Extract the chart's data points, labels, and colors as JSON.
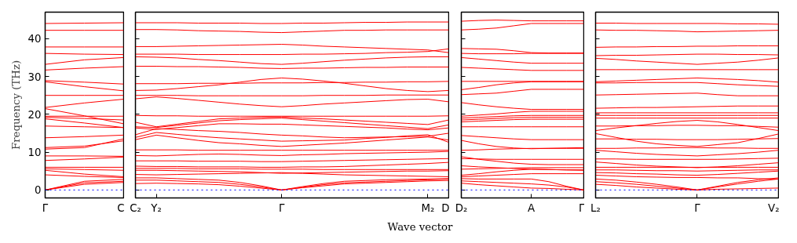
{
  "chart_data": [
    {
      "type": "line",
      "ylabel": "Frequency (THz)",
      "ylim": [
        -2.1,
        47
      ],
      "yticks": [
        0,
        10,
        20,
        30,
        40
      ],
      "categories": [
        "Γ",
        null,
        "C"
      ],
      "ref_lines": [
        {
          "axis": "y",
          "value": 0,
          "color": "#0000ff",
          "line_style": "dotted"
        }
      ],
      "series": [
        {
          "color": "#ff0000",
          "values": [
            44.0,
            44.1,
            44.2
          ]
        },
        {
          "color": "#ff0000",
          "values": [
            42.2,
            42.2,
            42.2
          ]
        },
        {
          "color": "#ff0000",
          "values": [
            37.8,
            37.8,
            37.8
          ]
        },
        {
          "color": "#ff0000",
          "values": [
            36.1,
            35.9,
            35.8
          ]
        },
        {
          "color": "#ff0000",
          "values": [
            33.2,
            34.4,
            35.0
          ]
        },
        {
          "color": "#ff0000",
          "values": [
            31.7,
            32.2,
            32.6
          ]
        },
        {
          "color": "#ff0000",
          "values": [
            28.9,
            28.5,
            28.0
          ]
        },
        {
          "color": "#ff0000",
          "values": [
            28.6,
            27.3,
            26.2
          ]
        },
        {
          "color": "#ff0000",
          "values": [
            25.0,
            25.0,
            25.0
          ]
        },
        {
          "color": "#ff0000",
          "values": [
            21.8,
            23.0,
            24.0
          ]
        },
        {
          "color": "#ff0000",
          "values": [
            21.5,
            19.6,
            17.5
          ]
        },
        {
          "color": "#ff0000",
          "values": [
            19.5,
            19.5,
            19.5
          ]
        },
        {
          "color": "#ff0000",
          "values": [
            19.2,
            18.9,
            18.5
          ]
        },
        {
          "color": "#ff0000",
          "values": [
            18.8,
            17.7,
            16.5
          ]
        },
        {
          "color": "#ff0000",
          "values": [
            16.9,
            16.7,
            16.5
          ]
        },
        {
          "color": "#ff0000",
          "values": [
            13.8,
            14.1,
            14.5
          ]
        },
        {
          "color": "#ff0000",
          "values": [
            11.2,
            11.6,
            13.0
          ]
        },
        {
          "color": "#ff0000",
          "values": [
            10.8,
            11.2,
            13.5
          ]
        },
        {
          "color": "#ff0000",
          "values": [
            9.0,
            9.0,
            8.9
          ]
        },
        {
          "color": "#ff0000",
          "values": [
            7.8,
            8.2,
            8.7
          ]
        },
        {
          "color": "#ff0000",
          "values": [
            6.0,
            6.0,
            6.0
          ]
        },
        {
          "color": "#ff0000",
          "values": [
            5.6,
            5.4,
            5.2
          ]
        },
        {
          "color": "#ff0000",
          "values": [
            5.2,
            4.2,
            3.5
          ]
        },
        {
          "color": "#ff0000",
          "values": [
            4.0,
            3.6,
            3.3
          ]
        },
        {
          "color": "#ff0000",
          "values": [
            0,
            2.3,
            2.8
          ]
        },
        {
          "color": "#ff0000",
          "values": [
            0,
            1.9,
            2.3
          ]
        },
        {
          "color": "#ff0000",
          "values": [
            0,
            1.5,
            2.0
          ]
        }
      ]
    },
    {
      "type": "line",
      "xlabel": "Wave vector",
      "tick_labels": "x",
      "ylim": [
        -2.1,
        47
      ],
      "yticks": [
        0,
        10,
        20,
        30,
        40
      ],
      "categories": [
        "C₂",
        "Y₂",
        null,
        null,
        null,
        null,
        null,
        "Γ",
        null,
        null,
        null,
        null,
        null,
        null,
        "M₂",
        "D"
      ],
      "ref_lines": [
        {
          "axis": "y",
          "value": 0,
          "color": "#0000ff",
          "line_style": "dotted"
        }
      ],
      "series": [
        {
          "color": "#ff0000",
          "values": [
            44.2,
            44.2,
            44.2,
            44.1,
            44.1,
            44.1,
            44.0,
            44.0,
            44.1,
            44.1,
            44.2,
            44.3,
            44.3,
            44.4,
            44.4,
            44.4
          ]
        },
        {
          "color": "#ff0000",
          "values": [
            42.4,
            42.4,
            42.3,
            42.1,
            42.0,
            41.9,
            41.7,
            41.6,
            41.8,
            42.0,
            42.2,
            42.2,
            42.3,
            42.3,
            42.3,
            42.3
          ]
        },
        {
          "color": "#ff0000",
          "values": [
            37.9,
            37.9,
            38.0,
            38.1,
            38.2,
            38.3,
            38.4,
            38.5,
            38.3,
            38.0,
            37.8,
            37.6,
            37.4,
            37.2,
            37.0,
            36.3
          ]
        },
        {
          "color": "#ff0000",
          "values": [
            35.9,
            35.9,
            35.9,
            35.8,
            35.8,
            35.8,
            35.8,
            35.8,
            35.9,
            35.9,
            36.0,
            36.1,
            36.3,
            36.4,
            36.6,
            37.3
          ]
        },
        {
          "color": "#ff0000",
          "values": [
            35.2,
            35.1,
            34.9,
            34.5,
            34.2,
            33.8,
            33.4,
            33.2,
            33.5,
            33.9,
            34.3,
            34.6,
            34.9,
            35.1,
            35.2,
            35.2
          ]
        },
        {
          "color": "#ff0000",
          "values": [
            32.7,
            32.7,
            32.6,
            32.6,
            32.5,
            32.4,
            32.2,
            32.1,
            32.2,
            32.2,
            32.3,
            32.4,
            32.4,
            32.5,
            32.5,
            32.5
          ]
        },
        {
          "color": "#ff0000",
          "values": [
            28.1,
            28.1,
            28.1,
            28.2,
            28.2,
            28.2,
            28.3,
            28.3,
            28.3,
            28.4,
            28.4,
            28.5,
            28.5,
            28.6,
            28.6,
            28.7
          ]
        },
        {
          "color": "#ff0000",
          "values": [
            26.3,
            26.4,
            26.8,
            27.3,
            27.8,
            28.5,
            29.2,
            29.6,
            29.3,
            28.8,
            28.2,
            27.5,
            26.8,
            26.3,
            26.0,
            26.3
          ]
        },
        {
          "color": "#ff0000",
          "values": [
            25.0,
            25.0,
            25.0,
            24.9,
            24.9,
            24.9,
            24.9,
            24.9,
            24.9,
            25.0,
            25.0,
            25.0,
            25.1,
            25.1,
            25.1,
            25.1
          ]
        },
        {
          "color": "#ff0000",
          "values": [
            24.1,
            24.6,
            24.2,
            23.7,
            23.2,
            22.7,
            22.3,
            22.0,
            22.3,
            22.7,
            23.0,
            23.3,
            23.6,
            23.9,
            24.0,
            23.3
          ]
        },
        {
          "color": "#ff0000",
          "values": [
            19.7,
            19.6,
            19.6,
            19.5,
            19.5,
            19.5,
            19.5,
            19.5,
            19.5,
            19.5,
            19.5,
            19.5,
            19.5,
            19.5,
            19.5,
            19.6
          ]
        },
        {
          "color": "#ff0000",
          "values": [
            17.9,
            16.7,
            17.4,
            18.1,
            18.8,
            19.0,
            19.2,
            19.3,
            19.0,
            18.8,
            18.5,
            18.2,
            17.9,
            17.6,
            17.3,
            18.5
          ]
        },
        {
          "color": "#ff0000",
          "values": [
            16.7,
            16.5,
            17.1,
            17.7,
            18.3,
            18.6,
            18.8,
            19.0,
            18.6,
            18.2,
            17.8,
            17.4,
            17.0,
            16.6,
            16.2,
            17.2
          ]
        },
        {
          "color": "#ff0000",
          "values": [
            16.4,
            16.0,
            16.5,
            17.0,
            17.5,
            17.5,
            17.4,
            17.4,
            17.2,
            17.0,
            16.8,
            16.6,
            16.4,
            16.1,
            15.9,
            16.4
          ]
        },
        {
          "color": "#ff0000",
          "values": [
            14.6,
            16.2,
            16.0,
            15.7,
            15.5,
            15.2,
            14.8,
            14.5,
            14.3,
            14.0,
            13.8,
            13.9,
            14.0,
            14.1,
            14.2,
            15.0
          ]
        },
        {
          "color": "#ff0000",
          "values": [
            13.9,
            15.2,
            14.7,
            14.2,
            13.8,
            13.5,
            13.2,
            12.9,
            13.0,
            13.1,
            13.2,
            13.6,
            13.9,
            14.3,
            14.6,
            12.6
          ]
        },
        {
          "color": "#ff0000",
          "values": [
            13.3,
            14.5,
            13.8,
            13.1,
            12.5,
            12.2,
            11.8,
            11.5,
            11.8,
            12.1,
            12.4,
            12.8,
            13.2,
            13.6,
            14.0,
            13.2
          ]
        },
        {
          "color": "#ff0000",
          "values": [
            10.6,
            10.6,
            10.6,
            10.5,
            10.5,
            10.5,
            10.5,
            10.5,
            10.5,
            10.5,
            10.5,
            10.5,
            10.5,
            10.5,
            10.5,
            10.5
          ]
        },
        {
          "color": "#ff0000",
          "values": [
            9.1,
            9.0,
            9.2,
            9.4,
            9.5,
            9.4,
            9.2,
            9.1,
            9.3,
            9.4,
            9.6,
            9.7,
            9.8,
            9.9,
            10.0,
            10.2
          ]
        },
        {
          "color": "#ff0000",
          "values": [
            7.7,
            7.7,
            7.7,
            7.6,
            7.6,
            7.6,
            7.5,
            7.5,
            7.6,
            7.7,
            7.8,
            7.9,
            8.0,
            8.1,
            8.2,
            8.3
          ]
        },
        {
          "color": "#ff0000",
          "values": [
            6.3,
            6.2,
            6.2,
            6.1,
            6.1,
            6.1,
            6.0,
            6.0,
            6.1,
            6.1,
            6.2,
            6.4,
            6.6,
            6.8,
            7.0,
            7.3
          ]
        },
        {
          "color": "#ff0000",
          "values": [
            5.7,
            5.7,
            5.7,
            5.6,
            5.6,
            5.6,
            5.5,
            5.5,
            5.5,
            5.4,
            5.4,
            5.4,
            5.4,
            5.4,
            5.4,
            5.4
          ]
        },
        {
          "color": "#ff0000",
          "values": [
            5.2,
            5.2,
            5.1,
            5.0,
            4.9,
            4.8,
            4.6,
            4.4,
            4.5,
            4.6,
            4.7,
            4.8,
            4.9,
            5.0,
            5.0,
            5.1
          ]
        },
        {
          "color": "#ff0000",
          "values": [
            4.1,
            4.0,
            4.1,
            4.2,
            4.3,
            4.4,
            4.5,
            4.6,
            4.4,
            4.2,
            4.0,
            3.9,
            3.8,
            3.7,
            3.6,
            3.5
          ]
        },
        {
          "color": "#ff0000",
          "values": [
            3.2,
            3.2,
            3.0,
            2.8,
            2.6,
            2.0,
            1.1,
            0,
            0.9,
            1.7,
            2.3,
            2.5,
            2.7,
            2.8,
            2.9,
            3.0
          ]
        },
        {
          "color": "#ff0000",
          "values": [
            2.6,
            2.6,
            2.4,
            2.2,
            2.0,
            1.5,
            0.8,
            0,
            0.7,
            1.4,
            1.9,
            2.1,
            2.3,
            2.5,
            2.7,
            2.9
          ]
        },
        {
          "color": "#ff0000",
          "values": [
            1.7,
            1.8,
            1.7,
            1.6,
            1.4,
            1.0,
            0.5,
            0,
            0.6,
            1.1,
            1.6,
            1.8,
            2.0,
            2.2,
            2.4,
            2.5
          ]
        }
      ]
    },
    {
      "type": "line",
      "tick_labels": "x",
      "ylim": [
        -2.1,
        47
      ],
      "yticks": [
        0,
        10,
        20,
        30,
        40
      ],
      "categories": [
        "D₂",
        null,
        null,
        null,
        "A",
        null,
        null,
        "Γ"
      ],
      "ref_lines": [
        {
          "axis": "y",
          "value": 0,
          "color": "#0000ff",
          "line_style": "dotted"
        }
      ],
      "series": [
        {
          "color": "#ff0000",
          "values": [
            44.6,
            44.8,
            44.9,
            44.8,
            44.7,
            44.7,
            44.7,
            44.7
          ]
        },
        {
          "color": "#ff0000",
          "values": [
            42.3,
            42.5,
            42.8,
            43.4,
            44.0,
            44.0,
            44.0,
            44.0
          ]
        },
        {
          "color": "#ff0000",
          "values": [
            37.4,
            37.3,
            37.2,
            36.8,
            36.3,
            36.2,
            36.2,
            36.2
          ]
        },
        {
          "color": "#ff0000",
          "values": [
            36.1,
            36.0,
            36.0,
            36.0,
            36.1,
            36.1,
            36.1,
            36.1
          ]
        },
        {
          "color": "#ff0000",
          "values": [
            35.0,
            34.6,
            34.2,
            33.8,
            33.5,
            33.5,
            33.5,
            33.5
          ]
        },
        {
          "color": "#ff0000",
          "values": [
            32.4,
            32.2,
            32.0,
            31.8,
            31.6,
            31.6,
            31.6,
            31.6
          ]
        },
        {
          "color": "#ff0000",
          "values": [
            28.7,
            28.7,
            28.7,
            28.7,
            28.7,
            28.7,
            28.7,
            28.7
          ]
        },
        {
          "color": "#ff0000",
          "values": [
            26.5,
            27.1,
            27.8,
            28.3,
            28.6,
            28.6,
            28.6,
            28.6
          ]
        },
        {
          "color": "#ff0000",
          "values": [
            25.2,
            25.4,
            25.6,
            26.1,
            26.6,
            26.6,
            26.6,
            26.6
          ]
        },
        {
          "color": "#ff0000",
          "values": [
            23.1,
            22.5,
            22.0,
            21.6,
            21.3,
            21.3,
            21.3,
            21.3
          ]
        },
        {
          "color": "#ff0000",
          "values": [
            19.5,
            19.8,
            20.1,
            20.5,
            20.8,
            20.8,
            20.8,
            20.8
          ]
        },
        {
          "color": "#ff0000",
          "values": [
            19.0,
            19.2,
            19.4,
            19.6,
            19.7,
            19.7,
            19.7,
            19.7
          ]
        },
        {
          "color": "#ff0000",
          "values": [
            18.5,
            18.7,
            18.9,
            19.1,
            19.2,
            19.2,
            19.2,
            19.2
          ]
        },
        {
          "color": "#ff0000",
          "values": [
            18.0,
            18.2,
            18.4,
            18.6,
            18.7,
            18.7,
            18.7,
            18.7
          ]
        },
        {
          "color": "#ff0000",
          "values": [
            16.7,
            16.7,
            16.7,
            16.7,
            16.7,
            16.7,
            16.7,
            16.7
          ]
        },
        {
          "color": "#ff0000",
          "values": [
            14.4,
            14.1,
            13.8,
            13.5,
            13.3,
            13.3,
            13.3,
            13.3
          ]
        },
        {
          "color": "#ff0000",
          "values": [
            13.1,
            12.2,
            11.5,
            11.1,
            10.9,
            11.0,
            11.1,
            11.2
          ]
        },
        {
          "color": "#ff0000",
          "values": [
            10.5,
            10.6,
            10.8,
            10.9,
            11.0,
            11.0,
            11.0,
            11.0
          ]
        },
        {
          "color": "#ff0000",
          "values": [
            8.8,
            8.1,
            7.6,
            7.1,
            6.8,
            6.7,
            6.7,
            6.7
          ]
        },
        {
          "color": "#ff0000",
          "values": [
            8.3,
            8.2,
            8.1,
            8.1,
            8.1,
            8.1,
            8.1,
            8.1
          ]
        },
        {
          "color": "#ff0000",
          "values": [
            6.4,
            6.1,
            5.9,
            5.7,
            5.5,
            5.4,
            5.3,
            5.3
          ]
        },
        {
          "color": "#ff0000",
          "values": [
            5.5,
            5.6,
            5.7,
            5.8,
            5.9,
            5.9,
            5.9,
            5.9
          ]
        },
        {
          "color": "#ff0000",
          "values": [
            3.9,
            4.3,
            4.8,
            5.2,
            5.5,
            5.4,
            5.3,
            5.2
          ]
        },
        {
          "color": "#ff0000",
          "values": [
            3.5,
            3.7,
            3.9,
            4.1,
            4.3,
            4.3,
            4.3,
            4.3
          ]
        },
        {
          "color": "#ff0000",
          "values": [
            3.0,
            2.9,
            2.9,
            2.9,
            2.9,
            2.2,
            1.0,
            0
          ]
        },
        {
          "color": "#ff0000",
          "values": [
            2.4,
            2.2,
            2.0,
            1.8,
            1.6,
            1.3,
            0.8,
            0
          ]
        },
        {
          "color": "#ff0000",
          "values": [
            1.8,
            1.4,
            1.1,
            0.8,
            0.5,
            0.4,
            0.2,
            0
          ]
        }
      ]
    },
    {
      "type": "line",
      "tick_labels": "x",
      "ylim": [
        -2.1,
        47
      ],
      "yticks": [
        0,
        10,
        20,
        30,
        40
      ],
      "categories": [
        "L₂",
        null,
        null,
        null,
        null,
        "Γ",
        null,
        null,
        null,
        "V₂"
      ],
      "ref_lines": [
        {
          "axis": "y",
          "value": 0,
          "color": "#0000ff",
          "line_style": "dotted"
        }
      ],
      "series": [
        {
          "color": "#ff0000",
          "values": [
            44.1,
            44.1,
            44.0,
            44.0,
            44.0,
            44.0,
            44.0,
            43.9,
            43.9,
            43.8
          ]
        },
        {
          "color": "#ff0000",
          "values": [
            42.3,
            42.2,
            42.2,
            42.1,
            42.0,
            41.8,
            41.9,
            42.0,
            42.1,
            42.2
          ]
        },
        {
          "color": "#ff0000",
          "values": [
            37.7,
            37.8,
            37.8,
            37.9,
            37.9,
            38.0,
            38.0,
            38.1,
            38.1,
            38.1
          ]
        },
        {
          "color": "#ff0000",
          "values": [
            35.5,
            35.6,
            35.6,
            35.7,
            35.8,
            35.9,
            35.9,
            35.8,
            35.8,
            35.7
          ]
        },
        {
          "color": "#ff0000",
          "values": [
            34.8,
            34.5,
            34.1,
            33.8,
            33.5,
            33.2,
            33.5,
            33.8,
            34.3,
            34.9
          ]
        },
        {
          "color": "#ff0000",
          "values": [
            31.8,
            31.8,
            31.8,
            31.8,
            31.8,
            31.8,
            31.8,
            31.8,
            31.8,
            31.8
          ]
        },
        {
          "color": "#ff0000",
          "values": [
            28.6,
            28.8,
            29.0,
            29.2,
            29.4,
            29.6,
            29.4,
            29.2,
            28.9,
            28.5
          ]
        },
        {
          "color": "#ff0000",
          "values": [
            28.3,
            28.3,
            28.4,
            28.4,
            28.4,
            28.4,
            28.1,
            27.8,
            27.6,
            27.4
          ]
        },
        {
          "color": "#ff0000",
          "values": [
            25.1,
            25.2,
            25.3,
            25.4,
            25.5,
            25.6,
            25.2,
            24.9,
            24.9,
            24.9
          ]
        },
        {
          "color": "#ff0000",
          "values": [
            21.6,
            21.7,
            21.8,
            21.8,
            21.9,
            22.0,
            22.1,
            22.2,
            22.2,
            22.2
          ]
        },
        {
          "color": "#ff0000",
          "values": [
            20.4,
            20.4,
            20.4,
            20.4,
            20.4,
            20.4,
            20.4,
            20.4,
            20.4,
            20.4
          ]
        },
        {
          "color": "#ff0000",
          "values": [
            19.7,
            19.7,
            19.7,
            19.7,
            19.7,
            19.7,
            19.7,
            19.7,
            19.7,
            19.7
          ]
        },
        {
          "color": "#ff0000",
          "values": [
            19.0,
            19.0,
            19.0,
            19.0,
            19.0,
            19.0,
            19.0,
            19.0,
            19.0,
            19.0
          ]
        },
        {
          "color": "#ff0000",
          "values": [
            15.7,
            16.4,
            17.0,
            17.6,
            18.1,
            18.4,
            18.0,
            17.3,
            16.5,
            15.7
          ]
        },
        {
          "color": "#ff0000",
          "values": [
            16.9,
            16.9,
            17.0,
            17.0,
            17.1,
            17.1,
            17.0,
            17.0,
            16.8,
            16.6
          ]
        },
        {
          "color": "#ff0000",
          "values": [
            14.9,
            13.9,
            12.9,
            12.2,
            11.8,
            11.5,
            12.0,
            12.5,
            13.6,
            14.8
          ]
        },
        {
          "color": "#ff0000",
          "values": [
            13.5,
            13.5,
            13.4,
            13.4,
            13.3,
            13.3,
            13.3,
            13.4,
            13.5,
            13.6
          ]
        },
        {
          "color": "#ff0000",
          "values": [
            11.0,
            11.0,
            11.1,
            11.1,
            11.2,
            11.2,
            11.1,
            11.1,
            11.0,
            11.0
          ]
        },
        {
          "color": "#ff0000",
          "values": [
            10.5,
            10.1,
            9.7,
            9.4,
            9.2,
            9.0,
            9.3,
            9.6,
            10.0,
            10.5
          ]
        },
        {
          "color": "#ff0000",
          "values": [
            8.2,
            8.2,
            8.1,
            8.1,
            8.1,
            8.1,
            8.1,
            8.2,
            8.3,
            8.4
          ]
        },
        {
          "color": "#ff0000",
          "values": [
            7.4,
            7.0,
            6.6,
            6.3,
            6.1,
            5.9,
            6.1,
            6.4,
            6.8,
            7.2
          ]
        },
        {
          "color": "#ff0000",
          "values": [
            6.0,
            6.0,
            6.0,
            6.0,
            6.0,
            6.0,
            6.0,
            6.0,
            6.0,
            6.0
          ]
        },
        {
          "color": "#ff0000",
          "values": [
            5.3,
            5.3,
            5.2,
            5.1,
            5.1,
            5.0,
            5.1,
            5.2,
            5.3,
            5.3
          ]
        },
        {
          "color": "#ff0000",
          "values": [
            4.6,
            4.5,
            4.3,
            4.2,
            4.0,
            3.9,
            4.1,
            4.4,
            4.7,
            5.0
          ]
        },
        {
          "color": "#ff0000",
          "values": [
            3.9,
            3.7,
            3.5,
            3.4,
            3.3,
            3.3,
            3.2,
            3.2,
            3.0,
            2.9
          ]
        },
        {
          "color": "#ff0000",
          "values": [
            2.9,
            2.6,
            2.1,
            1.5,
            0.8,
            0,
            1.0,
            2.0,
            2.7,
            3.2
          ]
        },
        {
          "color": "#ff0000",
          "values": [
            2.2,
            1.9,
            1.5,
            1.0,
            0.5,
            0,
            0.8,
            1.6,
            2.3,
            2.9
          ]
        },
        {
          "color": "#ff0000",
          "values": [
            1.5,
            1.2,
            0.8,
            0.5,
            0.2,
            0,
            0.2,
            0.3,
            0.4,
            0.5
          ]
        }
      ]
    }
  ]
}
